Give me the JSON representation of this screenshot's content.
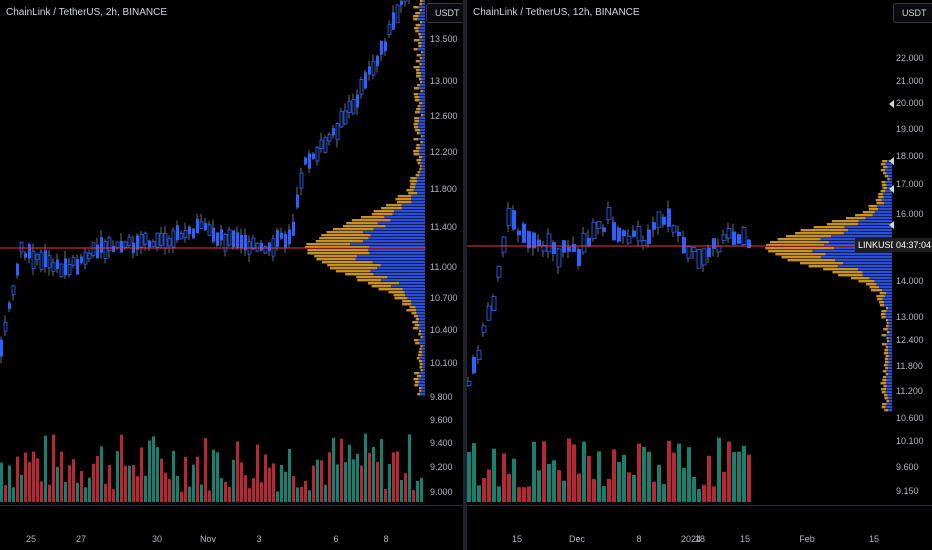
{
  "left": {
    "title": "ChainLink / TetherUS, 2h, BINANCE",
    "currency": "USDT",
    "price_labels": [
      "13.500",
      "13.000",
      "12.600",
      "12.200",
      "11.800",
      "11.400",
      "11.000",
      "10.700",
      "10.400",
      "10.100",
      "9.800",
      "9.600",
      "9.400",
      "9.200",
      "9.000"
    ],
    "time_labels": [
      "25",
      "27",
      "30",
      "Nov",
      "3",
      "6",
      "8"
    ]
  },
  "right": {
    "title": "ChainLink / TetherUS, 12h, BINANCE",
    "currency": "USDT",
    "price_labels": [
      "22.000",
      "21.000",
      "20.000",
      "19.000",
      "18.000",
      "17.000",
      "16.000",
      "14.000",
      "13.000",
      "12.400",
      "11.800",
      "11.200",
      "10.600",
      "10.100",
      "9.600",
      "9.150"
    ],
    "time_labels": [
      "15",
      "Dec",
      "8",
      "18",
      "2024",
      "15",
      "Feb",
      "15"
    ],
    "symbol": "LINKUSDT",
    "countdown": "04:37:04"
  },
  "colors": {
    "up": "#2962ff",
    "down": "#131722",
    "profile_up": "#2a4fd6",
    "profile_down": "#c89222",
    "volume_up": "#22ab94",
    "volume_down": "#f23645",
    "current_price_line": "#f23645"
  }
}
